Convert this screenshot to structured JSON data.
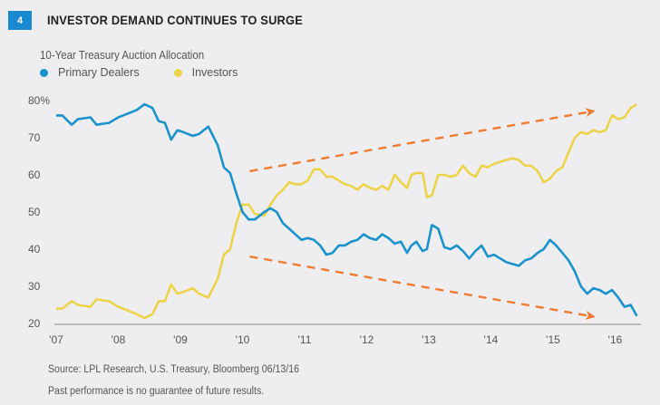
{
  "figure": {
    "number": "4",
    "title": "INVESTOR DEMAND CONTINUES TO SURGE",
    "source": "Source: LPL Research, U.S. Treasury, Bloomberg   06/13/16",
    "disclaimer": "Past performance is no guarantee of future results."
  },
  "colors": {
    "badge": "#1a8ad0",
    "primary_dealers": "#1a92cc",
    "investors": "#ecd44a",
    "arrow": "#f07a30",
    "axis": "#8a8a8a"
  },
  "chart_data": {
    "type": "line",
    "title": "10-Year Treasury Auction Allocation",
    "xlabel": "",
    "ylabel": "",
    "ylim": [
      20,
      80
    ],
    "xlim": [
      2007,
      2016.4
    ],
    "y_ticks": [
      "80%",
      "70",
      "60",
      "50",
      "40",
      "30",
      "20"
    ],
    "y_tick_values": [
      80,
      70,
      60,
      50,
      40,
      30,
      20
    ],
    "x_ticks": [
      "'07",
      "'08",
      "'09",
      "'10",
      "'11",
      "'12",
      "'13",
      "'14",
      "'15",
      "'16"
    ],
    "x_tick_values": [
      2007,
      2008,
      2009,
      2010,
      2011,
      2012,
      2013,
      2014,
      2015,
      2016
    ],
    "grid": false,
    "legend": "top-left",
    "series": [
      {
        "name": "Primary Dealers",
        "x": [
          2007.0,
          2007.1,
          2007.25,
          2007.35,
          2007.55,
          2007.65,
          2007.85,
          2008.0,
          2008.15,
          2008.3,
          2008.42,
          2008.55,
          2008.65,
          2008.75,
          2008.85,
          2008.95,
          2009.05,
          2009.2,
          2009.3,
          2009.45,
          2009.6,
          2009.7,
          2009.8,
          2009.9,
          2010.0,
          2010.1,
          2010.2,
          2010.35,
          2010.45,
          2010.55,
          2010.65,
          2010.75,
          2010.85,
          2010.95,
          2011.05,
          2011.15,
          2011.25,
          2011.35,
          2011.45,
          2011.55,
          2011.65,
          2011.75,
          2011.85,
          2011.95,
          2012.05,
          2012.15,
          2012.25,
          2012.35,
          2012.45,
          2012.55,
          2012.65,
          2012.72,
          2012.8,
          2012.9,
          2012.97,
          2013.05,
          2013.15,
          2013.25,
          2013.35,
          2013.45,
          2013.55,
          2013.65,
          2013.75,
          2013.85,
          2013.95,
          2014.05,
          2014.15,
          2014.25,
          2014.35,
          2014.45,
          2014.55,
          2014.65,
          2014.75,
          2014.85,
          2014.95,
          2015.05,
          2015.15,
          2015.25,
          2015.35,
          2015.45,
          2015.55,
          2015.65,
          2015.75,
          2015.85,
          2015.95,
          2016.05,
          2016.15,
          2016.25,
          2016.35
        ],
        "values": [
          76,
          76,
          73.5,
          75,
          75.5,
          73.5,
          74,
          75.5,
          76.5,
          77.5,
          79,
          78,
          74.5,
          74,
          69.5,
          72,
          71.5,
          70.5,
          71,
          73,
          68,
          62,
          60.5,
          55,
          50,
          48,
          48,
          50,
          51,
          50,
          47,
          45.5,
          44,
          42.5,
          43,
          42.5,
          41,
          38.5,
          39,
          41,
          41,
          42,
          42.5,
          44,
          43,
          42.5,
          44,
          43,
          41.5,
          42,
          39,
          41,
          42,
          39.5,
          40,
          46.5,
          45.5,
          40.5,
          40,
          41,
          39.5,
          37.5,
          39.5,
          41,
          38,
          38.5,
          37.5,
          36.5,
          36,
          35.5,
          37,
          37.5,
          39,
          40,
          42.5,
          41,
          39,
          37,
          34,
          30,
          28,
          29.5,
          29,
          28,
          29,
          27,
          24.5,
          25,
          22
        ]
      },
      {
        "name": "Investors",
        "x": [
          2007.0,
          2007.1,
          2007.25,
          2007.35,
          2007.55,
          2007.65,
          2007.85,
          2008.0,
          2008.15,
          2008.3,
          2008.42,
          2008.55,
          2008.65,
          2008.75,
          2008.85,
          2008.95,
          2009.05,
          2009.2,
          2009.3,
          2009.45,
          2009.6,
          2009.7,
          2009.8,
          2009.9,
          2010.0,
          2010.1,
          2010.2,
          2010.35,
          2010.45,
          2010.55,
          2010.65,
          2010.75,
          2010.85,
          2010.95,
          2011.05,
          2011.15,
          2011.25,
          2011.35,
          2011.45,
          2011.55,
          2011.65,
          2011.75,
          2011.85,
          2011.95,
          2012.05,
          2012.15,
          2012.25,
          2012.35,
          2012.45,
          2012.55,
          2012.65,
          2012.72,
          2012.8,
          2012.9,
          2012.97,
          2013.05,
          2013.15,
          2013.25,
          2013.35,
          2013.45,
          2013.55,
          2013.65,
          2013.75,
          2013.85,
          2013.95,
          2014.05,
          2014.15,
          2014.25,
          2014.35,
          2014.45,
          2014.55,
          2014.65,
          2014.75,
          2014.85,
          2014.95,
          2015.05,
          2015.15,
          2015.25,
          2015.35,
          2015.45,
          2015.55,
          2015.65,
          2015.75,
          2015.85,
          2015.95,
          2016.05,
          2016.15,
          2016.25,
          2016.35
        ],
        "values": [
          24,
          24,
          26,
          25,
          24.5,
          26.5,
          26,
          24.5,
          23.5,
          22.5,
          21.5,
          22.5,
          26,
          26,
          30.5,
          28,
          28.5,
          29.5,
          28,
          27,
          32,
          38.5,
          40,
          47,
          52,
          52,
          49.5,
          49,
          52,
          54.5,
          56,
          58,
          57.5,
          57.5,
          58.5,
          61.5,
          61.5,
          59.5,
          59.5,
          58.5,
          57.5,
          57,
          56,
          57.5,
          56.5,
          56,
          57,
          56,
          60,
          58,
          56.5,
          60,
          60.5,
          60.5,
          54,
          54.5,
          60,
          60,
          59.5,
          60,
          62.5,
          60.5,
          59.5,
          62.5,
          62,
          63,
          63.5,
          64,
          64.5,
          64,
          62.5,
          62.5,
          61,
          58,
          59,
          61,
          62,
          66,
          70,
          71.5,
          71,
          72,
          71.5,
          72,
          76,
          75,
          75.5,
          78,
          79
        ]
      }
    ],
    "annotations": [
      {
        "type": "arrow",
        "description": "upward trend arrow",
        "from": [
          2010.0,
          61
        ],
        "to": [
          2015.6,
          77
        ]
      },
      {
        "type": "arrow",
        "description": "downward trend arrow",
        "from": [
          2010.0,
          38
        ],
        "to": [
          2015.6,
          22
        ]
      }
    ]
  }
}
